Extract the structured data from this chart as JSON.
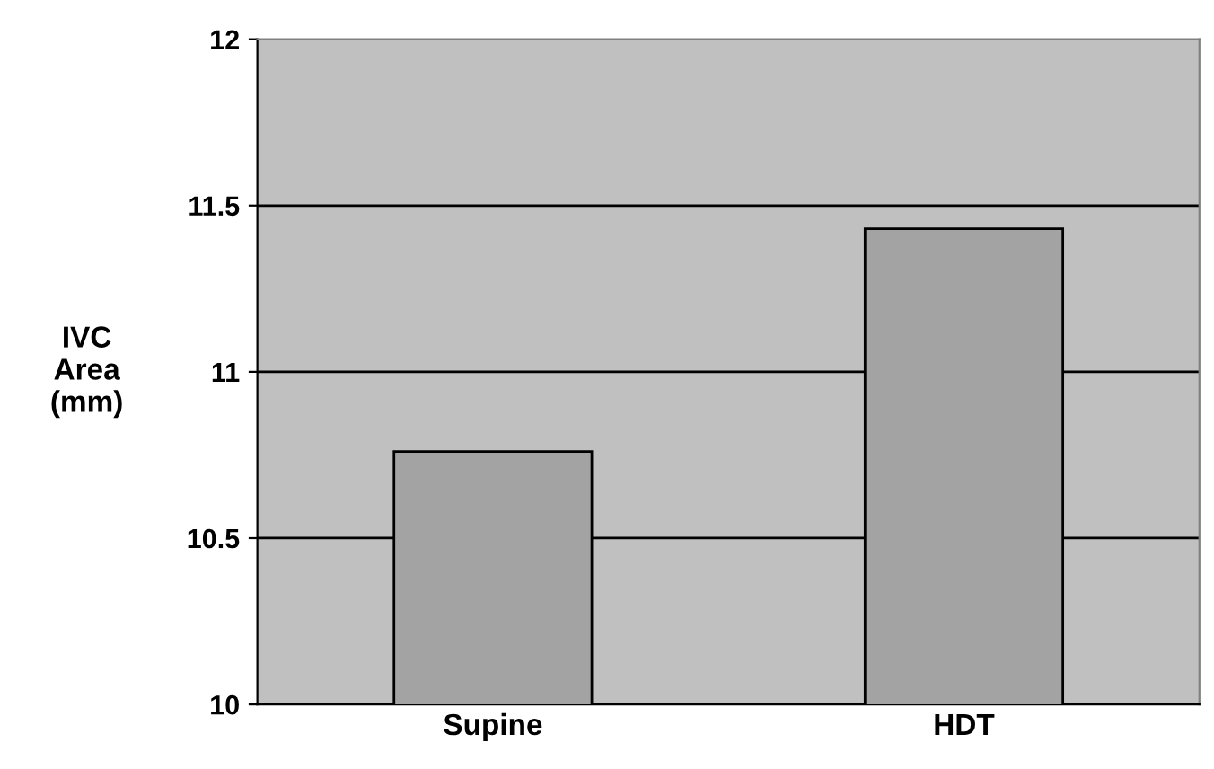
{
  "chart_data": {
    "type": "bar",
    "ylabel": "IVC\nArea\n(mm)",
    "categories": [
      "Supine",
      "HDT"
    ],
    "values": [
      10.76,
      11.43
    ],
    "color": "#a3a3a3",
    "ylim": [
      10,
      12
    ],
    "yticks": [
      10,
      10.5,
      11,
      11.5,
      12
    ],
    "grid": "y"
  }
}
